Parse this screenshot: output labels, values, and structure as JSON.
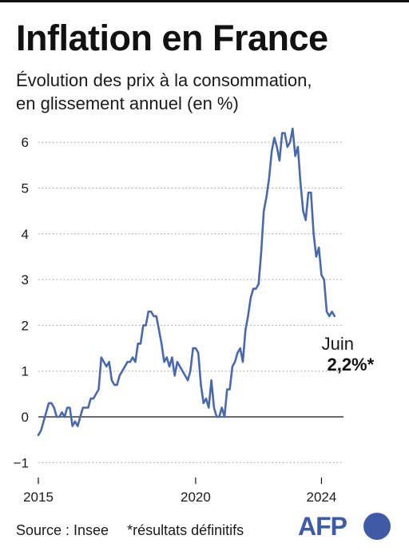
{
  "title": "Inflation en France",
  "subtitle_line1": "Évolution des prix à la consommation,",
  "subtitle_line2": "en glissement annuel (en %)",
  "source": "Source : Insee",
  "note": "*résultats définitifs",
  "logo_text": "AFP",
  "colors": {
    "line": "#4a69ad",
    "zero_line": "#111111",
    "text": "#1a1a1a",
    "logo": "#3f5ba6"
  },
  "chart_data": {
    "type": "line",
    "title": "Inflation en France",
    "subtitle": "Évolution des prix à la consommation, en glissement annuel (en %)",
    "ylim": [
      -1,
      6.5
    ],
    "yticks": [
      -1,
      0,
      1,
      2,
      3,
      4,
      5,
      6
    ],
    "ytick_labels": [
      "−1",
      "0",
      "1",
      "2",
      "3",
      "4",
      "5",
      "6"
    ],
    "xlim": [
      2015,
      2024.7
    ],
    "xticks": [
      2015,
      2020,
      2024
    ],
    "xtick_labels": [
      "2015",
      "2020",
      "2024"
    ],
    "grid": true,
    "annotation": {
      "label": "Juin",
      "value_label": "2,2%*"
    },
    "series": [
      {
        "start": "2015-01",
        "frequency": "monthly",
        "values": [
          -0.4,
          -0.3,
          -0.1,
          0.1,
          0.3,
          0.3,
          0.2,
          0.0,
          0.0,
          0.1,
          0.0,
          0.2,
          0.2,
          -0.2,
          -0.1,
          -0.2,
          0.0,
          0.2,
          0.2,
          0.2,
          0.4,
          0.4,
          0.5,
          0.6,
          1.3,
          1.2,
          1.1,
          1.2,
          0.8,
          0.7,
          0.7,
          0.9,
          1.0,
          1.1,
          1.2,
          1.2,
          1.3,
          1.2,
          1.6,
          1.6,
          2.0,
          2.0,
          2.3,
          2.3,
          2.2,
          2.2,
          1.9,
          1.6,
          1.2,
          1.3,
          1.1,
          1.3,
          0.9,
          1.2,
          1.1,
          1.0,
          0.9,
          0.8,
          1.0,
          1.5,
          1.5,
          1.4,
          0.7,
          0.3,
          0.4,
          0.2,
          0.8,
          0.2,
          0.0,
          0.0,
          0.2,
          0.0,
          0.6,
          0.6,
          1.1,
          1.2,
          1.4,
          1.5,
          1.2,
          1.9,
          2.2,
          2.6,
          2.8,
          2.8,
          2.9,
          3.6,
          4.5,
          4.8,
          5.2,
          5.8,
          6.1,
          5.9,
          5.6,
          6.2,
          6.2,
          5.9,
          6.0,
          6.3,
          5.7,
          5.9,
          5.1,
          4.5,
          4.3,
          4.9,
          4.9,
          4.0,
          3.5,
          3.7,
          3.1,
          3.0,
          2.3,
          2.2,
          2.3,
          2.2
        ]
      }
    ]
  }
}
